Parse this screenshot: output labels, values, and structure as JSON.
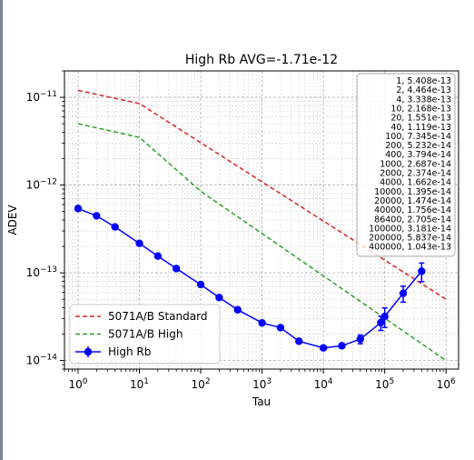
{
  "chart_data": {
    "type": "line",
    "title": "High Rb AVG=-1.71e-12",
    "xlabel": "Tau",
    "ylabel": "ADEV",
    "xscale": "log",
    "yscale": "log",
    "xlim": [
      0.6,
      1600000
    ],
    "ylim": [
      8e-15,
      2e-11
    ],
    "grid": true,
    "legend_position": "lower-left",
    "x_tick_labels": [
      "10^0",
      "10^1",
      "10^2",
      "10^3",
      "10^4",
      "10^5",
      "10^6"
    ],
    "y_tick_labels": [
      "10^-14",
      "10^-13",
      "10^-12",
      "10^-11"
    ],
    "series": [
      {
        "name": "5071A/B Standard",
        "color": "#d62728",
        "style": "dashed",
        "x": [
          1,
          10,
          1000000
        ],
        "y": [
          1.2e-11,
          8.5e-12,
          5e-14
        ]
      },
      {
        "name": "5071A/B High",
        "color": "#2ca02c",
        "style": "dashed",
        "x": [
          1,
          10,
          100,
          1000000
        ],
        "y": [
          5e-12,
          3.5e-12,
          8.5e-13,
          1e-14
        ]
      },
      {
        "name": "High Rb",
        "color": "#0000ff",
        "style": "solid-markers",
        "x": [
          1,
          2,
          4,
          10,
          20,
          40,
          100,
          200,
          400,
          1000,
          2000,
          4000,
          10000,
          20000,
          40000,
          86400,
          100000,
          200000,
          400000
        ],
        "y": [
          5.408e-13,
          4.464e-13,
          3.338e-13,
          2.168e-13,
          1.551e-13,
          1.119e-13,
          7.345e-14,
          5.232e-14,
          3.794e-14,
          2.687e-14,
          2.374e-14,
          1.662e-14,
          1.395e-14,
          1.474e-14,
          1.756e-14,
          2.705e-14,
          3.181e-14,
          5.837e-14,
          1.043e-13
        ],
        "err": [
          0,
          0,
          0,
          0,
          0,
          0,
          0,
          0,
          0,
          0,
          0,
          0,
          0,
          0,
          2e-15,
          5e-15,
          8e-15,
          1.2e-14,
          2.5e-14
        ]
      }
    ],
    "table_lines": [
      "1, 5.408e-13",
      "2, 4.464e-13",
      "4, 3.338e-13",
      "10, 2.168e-13",
      "20, 1.551e-13",
      "40, 1.119e-13",
      "100, 7.345e-14",
      "200, 5.232e-14",
      "400, 3.794e-14",
      "1000, 2.687e-14",
      "2000, 2.374e-14",
      "4000, 1.662e-14",
      "10000, 1.395e-14",
      "20000, 1.474e-14",
      "40000, 1.756e-14",
      "86400, 2.705e-14",
      "100000, 3.181e-14",
      "200000, 5.837e-14",
      "400000, 1.043e-13"
    ]
  }
}
